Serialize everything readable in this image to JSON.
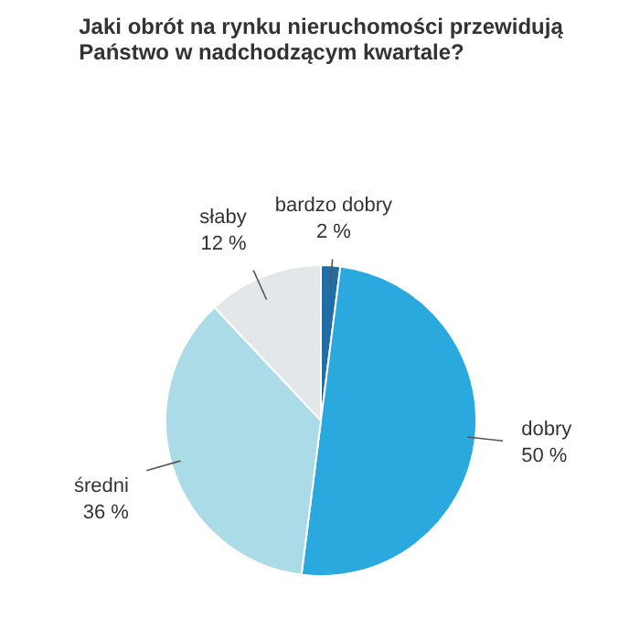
{
  "chart_data": {
    "type": "pie",
    "title": "Jaki obrót na rynku nieruchomości przewidują\nPaństwo w nadchodzącym kwartale?",
    "categories": [
      "bardzo dobry",
      "dobry",
      "średni",
      "słaby"
    ],
    "values": [
      2,
      50,
      36,
      12
    ],
    "value_labels": [
      "2 %",
      "50 %",
      "36 %",
      "12 %"
    ],
    "colors": [
      "#1f6fa6",
      "#2aa9df",
      "#aadbe6",
      "#e4e7ea"
    ]
  }
}
